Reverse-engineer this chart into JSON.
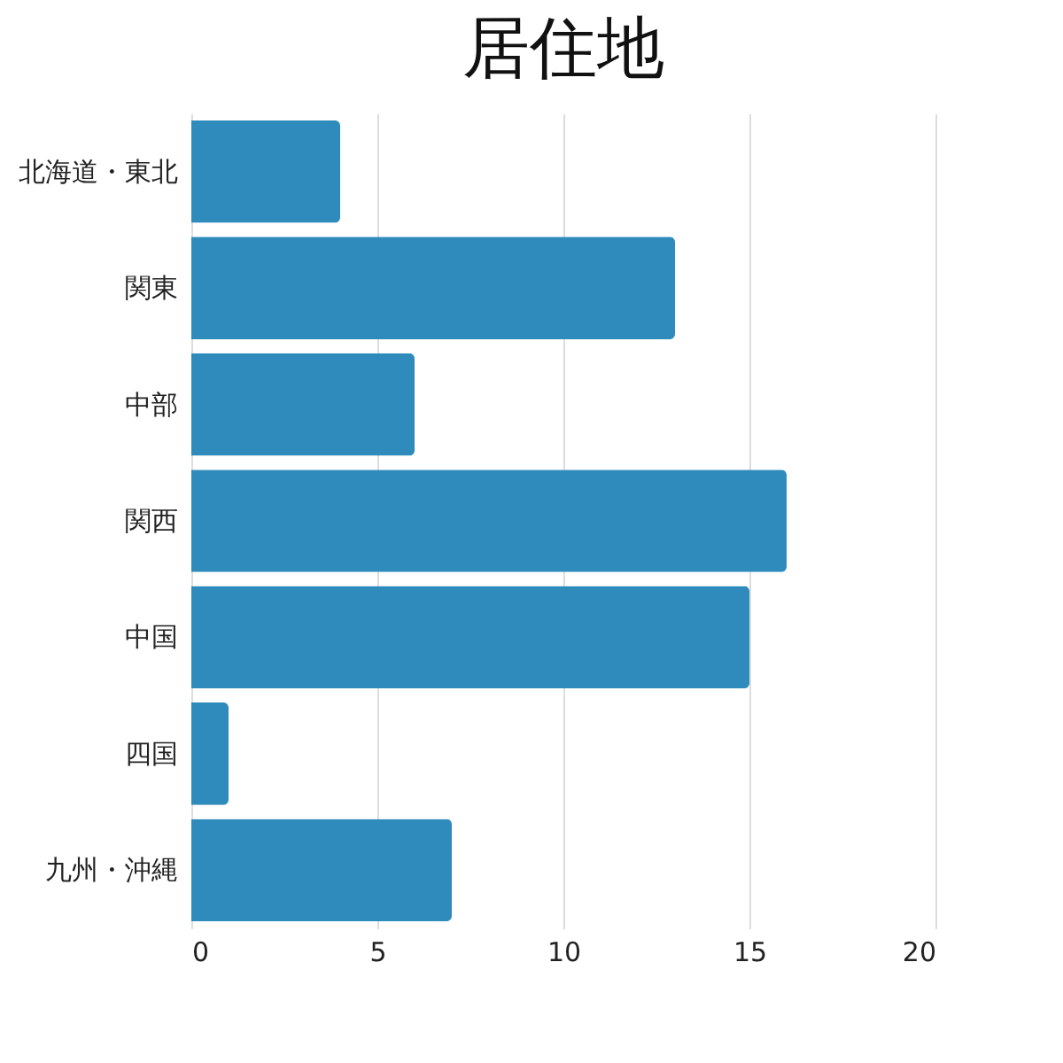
{
  "chart_data": {
    "type": "bar",
    "title": "居住地",
    "orientation": "horizontal",
    "categories": [
      "北海道・東北",
      "関東",
      "中部",
      "関西",
      "中国",
      "四国",
      "九州・沖縄"
    ],
    "values": [
      4,
      13,
      6,
      16,
      15,
      1,
      7
    ],
    "color": "#2e8bbc",
    "xlim": [
      0,
      20
    ],
    "xticks": [
      0,
      5,
      10,
      15,
      20
    ],
    "grid": "x"
  }
}
